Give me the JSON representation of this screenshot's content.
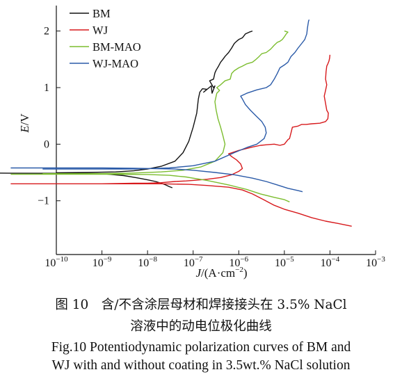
{
  "chart_data": {
    "type": "line",
    "xlabel_italic": "J",
    "xlabel_rest": "/(A·cm",
    "xlabel_sup": "−2",
    "xlabel_close": ")",
    "ylabel_italic": "E",
    "ylabel_rest": "/V",
    "x_scale": "log",
    "xlim_exp": [
      -10,
      -3
    ],
    "ylim": [
      -1.95,
      2.45
    ],
    "x_ticks": [
      {
        "exp": -10,
        "base": "10",
        "sup": "−10"
      },
      {
        "exp": -9,
        "base": "10",
        "sup": "−9"
      },
      {
        "exp": -8,
        "base": "10",
        "sup": "−8"
      },
      {
        "exp": -7,
        "base": "10",
        "sup": "−7"
      },
      {
        "exp": -6,
        "base": "10",
        "sup": "−6"
      },
      {
        "exp": -5,
        "base": "10",
        "sup": "−5"
      },
      {
        "exp": -4,
        "base": "10",
        "sup": "−4"
      },
      {
        "exp": -3,
        "base": "10",
        "sup": "−3"
      }
    ],
    "y_ticks": [
      {
        "value": 2,
        "label": "2"
      },
      {
        "value": 1,
        "label": "1"
      },
      {
        "value": 0,
        "label": "0"
      },
      {
        "value": -1,
        "label": "−1"
      }
    ],
    "legend_position": "top-left",
    "series": [
      {
        "name": "BM",
        "color": "#111111",
        "points": [
          [
            0.004,
            -0.51
          ],
          [
            0.01,
            -0.513
          ],
          [
            0.1,
            -0.514
          ],
          [
            1,
            -0.52
          ],
          [
            3,
            -0.555
          ],
          [
            6,
            -0.595
          ],
          [
            10,
            -0.63
          ],
          [
            15,
            -0.66
          ],
          [
            20,
            -0.69
          ],
          [
            25,
            -0.72
          ],
          [
            30,
            -0.75
          ],
          [
            35,
            -0.77
          ],
          [
            0.1,
            -0.505
          ],
          [
            0.5,
            -0.5
          ],
          [
            2,
            -0.49
          ],
          [
            5,
            -0.47
          ],
          [
            10,
            -0.44
          ],
          [
            20,
            -0.39
          ],
          [
            40,
            -0.3
          ],
          [
            60,
            -0.15
          ],
          [
            80,
            0.05
          ],
          [
            100,
            0.3
          ],
          [
            120,
            0.55
          ],
          [
            130,
            0.8
          ],
          [
            140,
            0.92
          ],
          [
            160,
            0.98
          ],
          [
            200,
            0.97
          ],
          [
            170,
            0.92
          ],
          [
            250,
            1.03
          ],
          [
            260,
            0.9
          ],
          [
            300,
            1.03
          ],
          [
            280,
            1.0
          ],
          [
            230,
            1.12
          ],
          [
            280,
            1.15
          ],
          [
            300,
            1.26
          ],
          [
            320,
            1.31
          ],
          [
            360,
            1.38
          ],
          [
            400,
            1.45
          ],
          [
            450,
            1.5
          ],
          [
            500,
            1.55
          ],
          [
            600,
            1.62
          ],
          [
            700,
            1.7
          ],
          [
            800,
            1.78
          ],
          [
            900,
            1.82
          ],
          [
            1000,
            1.85
          ],
          [
            1200,
            1.88
          ],
          [
            1400,
            1.95
          ],
          [
            1700,
            1.98
          ],
          [
            2000,
            2.0
          ]
        ]
      },
      {
        "name": "WJ",
        "color": "#d7191c",
        "points": [
          [
            0.01,
            -0.7
          ],
          [
            0.1,
            -0.7
          ],
          [
            1,
            -0.7
          ],
          [
            5,
            -0.69
          ],
          [
            10,
            -0.69
          ],
          [
            20,
            -0.68
          ],
          [
            40,
            -0.66
          ],
          [
            70,
            -0.65
          ],
          [
            100,
            -0.64
          ],
          [
            200,
            -0.62
          ],
          [
            400,
            -0.59
          ],
          [
            700,
            -0.54
          ],
          [
            1000,
            -0.48
          ],
          [
            1200,
            -0.43
          ],
          [
            1100,
            -0.35
          ],
          [
            900,
            -0.28
          ],
          [
            700,
            -0.22
          ],
          [
            600,
            -0.17
          ],
          [
            1000,
            -0.11
          ],
          [
            2000,
            -0.05
          ],
          [
            3000,
            -0.02
          ],
          [
            4000,
            -0.01
          ],
          [
            6000,
            0.0
          ],
          [
            8000,
            -0.02
          ],
          [
            10000,
            0.0
          ],
          [
            12000,
            0.08
          ],
          [
            13000,
            0.1
          ],
          [
            14000,
            0.2
          ],
          [
            15000,
            0.3
          ],
          [
            20000,
            0.32
          ],
          [
            24000,
            0.35
          ],
          [
            30000,
            0.35
          ],
          [
            40000,
            0.36
          ],
          [
            60000,
            0.37
          ],
          [
            80000,
            0.4
          ],
          [
            90000,
            0.45
          ],
          [
            92000,
            0.55
          ],
          [
            85000,
            0.6
          ],
          [
            80000,
            0.72
          ],
          [
            75000,
            0.85
          ],
          [
            80000,
            0.95
          ],
          [
            85000,
            1.05
          ],
          [
            80000,
            1.15
          ],
          [
            82000,
            1.28
          ],
          [
            85000,
            1.38
          ],
          [
            90000,
            1.42
          ],
          [
            95000,
            1.47
          ],
          [
            98000,
            1.52
          ],
          [
            100000,
            1.58
          ],
          [
            0.02,
            -0.7
          ],
          [
            1,
            -0.7
          ],
          [
            20,
            -0.7
          ],
          [
            80,
            -0.71
          ],
          [
            200,
            -0.73
          ],
          [
            600,
            -0.76
          ],
          [
            1200,
            -0.81
          ],
          [
            2000,
            -0.88
          ],
          [
            3500,
            -0.98
          ],
          [
            6000,
            -1.08
          ],
          [
            10000,
            -1.15
          ],
          [
            20000,
            -1.22
          ],
          [
            40000,
            -1.3
          ],
          [
            80000,
            -1.36
          ],
          [
            150000,
            -1.4
          ],
          [
            300000,
            -1.45
          ]
        ]
      },
      {
        "name": "BM-MAO",
        "color": "#7cbd2f",
        "points": [
          [
            0.01,
            -0.53
          ],
          [
            0.3,
            -0.53
          ],
          [
            2,
            -0.53
          ],
          [
            10,
            -0.535
          ],
          [
            30,
            -0.55
          ],
          [
            70,
            -0.58
          ],
          [
            200,
            -0.64
          ],
          [
            600,
            -0.72
          ],
          [
            1500,
            -0.8
          ],
          [
            3000,
            -0.88
          ],
          [
            6000,
            -0.94
          ],
          [
            10000,
            -0.98
          ],
          [
            13000,
            -1.02
          ],
          [
            0.05,
            -0.52
          ],
          [
            1,
            -0.52
          ],
          [
            5,
            -0.51
          ],
          [
            20,
            -0.49
          ],
          [
            60,
            -0.46
          ],
          [
            150,
            -0.4
          ],
          [
            300,
            -0.3
          ],
          [
            450,
            -0.15
          ],
          [
            500,
            0.0
          ],
          [
            450,
            0.15
          ],
          [
            400,
            0.3
          ],
          [
            350,
            0.45
          ],
          [
            320,
            0.6
          ],
          [
            300,
            0.75
          ],
          [
            330,
            0.9
          ],
          [
            380,
            0.95
          ],
          [
            330,
            1.0
          ],
          [
            400,
            1.05
          ],
          [
            500,
            1.12
          ],
          [
            650,
            1.15
          ],
          [
            700,
            1.25
          ],
          [
            800,
            1.3
          ],
          [
            1000,
            1.35
          ],
          [
            1200,
            1.38
          ],
          [
            1500,
            1.42
          ],
          [
            2000,
            1.45
          ],
          [
            2400,
            1.5
          ],
          [
            2800,
            1.55
          ],
          [
            3200,
            1.6
          ],
          [
            4000,
            1.62
          ],
          [
            5000,
            1.68
          ],
          [
            6000,
            1.75
          ],
          [
            7000,
            1.8
          ],
          [
            8000,
            1.82
          ],
          [
            9000,
            1.85
          ],
          [
            10000,
            1.9
          ],
          [
            11000,
            1.95
          ],
          [
            12000,
            1.98
          ],
          [
            10000,
            2.0
          ]
        ]
      },
      {
        "name": "WJ-MAO",
        "color": "#2a5aa8",
        "points": [
          [
            0.01,
            -0.42
          ],
          [
            0.1,
            -0.42
          ],
          [
            1,
            -0.42
          ],
          [
            5,
            -0.425
          ],
          [
            10,
            -0.43
          ],
          [
            40,
            -0.44
          ],
          [
            100,
            -0.46
          ],
          [
            300,
            -0.5
          ],
          [
            800,
            -0.54
          ],
          [
            2000,
            -0.6
          ],
          [
            4000,
            -0.66
          ],
          [
            7000,
            -0.72
          ],
          [
            12000,
            -0.78
          ],
          [
            20000,
            -0.82
          ],
          [
            25000,
            -0.84
          ],
          [
            0.05,
            -0.44
          ],
          [
            0.5,
            -0.44
          ],
          [
            5,
            -0.44
          ],
          [
            30,
            -0.42
          ],
          [
            100,
            -0.38
          ],
          [
            300,
            -0.3
          ],
          [
            800,
            -0.15
          ],
          [
            1600,
            -0.05
          ],
          [
            2500,
            0.0
          ],
          [
            3600,
            0.1
          ],
          [
            4000,
            0.2
          ],
          [
            3800,
            0.3
          ],
          [
            3200,
            0.4
          ],
          [
            2400,
            0.5
          ],
          [
            1800,
            0.6
          ],
          [
            1400,
            0.7
          ],
          [
            1200,
            0.8
          ],
          [
            1100,
            0.85
          ],
          [
            1500,
            0.9
          ],
          [
            2500,
            0.96
          ],
          [
            4000,
            1.0
          ],
          [
            5000,
            1.05
          ],
          [
            6000,
            1.15
          ],
          [
            7000,
            1.25
          ],
          [
            8000,
            1.35
          ],
          [
            10000,
            1.4
          ],
          [
            12000,
            1.45
          ],
          [
            14000,
            1.55
          ],
          [
            17000,
            1.62
          ],
          [
            20000,
            1.7
          ],
          [
            24000,
            1.78
          ],
          [
            28000,
            1.85
          ],
          [
            31000,
            1.95
          ],
          [
            32000,
            2.05
          ],
          [
            33000,
            2.12
          ],
          [
            34000,
            2.18
          ],
          [
            35000,
            2.2
          ]
        ]
      }
    ]
  },
  "caption": {
    "cn_line1": "图 10　含/不含涂层母材和焊接接头在 3.5% NaCl",
    "cn_line2": "溶液中的动电位极化曲线",
    "en_line1": "Fig.10 Potentiodynamic polarization curves of BM and",
    "en_line2": "WJ with and without coating in 3.5wt.% NaCl solution"
  }
}
